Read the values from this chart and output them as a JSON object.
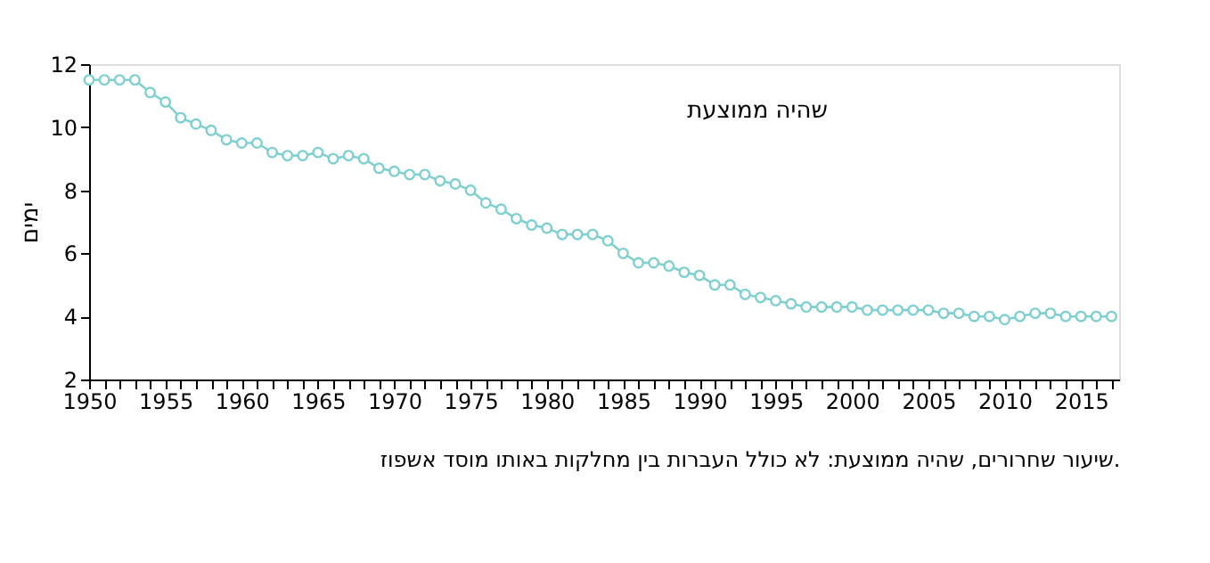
{
  "chart_data": {
    "type": "line",
    "ylabel": "ימים",
    "annotations": [
      "שיעור שחרורים, שהיה ממוצעת: לא כולל העברות בין מחלקות באותו מוסד אשפוז."
    ],
    "x": [
      1950,
      1951,
      1952,
      1953,
      1954,
      1955,
      1956,
      1957,
      1958,
      1959,
      1960,
      1961,
      1962,
      1963,
      1964,
      1965,
      1966,
      1967,
      1968,
      1969,
      1970,
      1971,
      1972,
      1973,
      1974,
      1975,
      1976,
      1977,
      1978,
      1979,
      1980,
      1981,
      1982,
      1983,
      1984,
      1985,
      1986,
      1987,
      1988,
      1989,
      1990,
      1991,
      1992,
      1993,
      1994,
      1995,
      1996,
      1997,
      1998,
      1999,
      2000,
      2001,
      2002,
      2003,
      2004,
      2005,
      2006,
      2007,
      2008,
      2009,
      2010,
      2011,
      2012,
      2013,
      2014,
      2015,
      2016,
      2017
    ],
    "series": [
      {
        "name": "שהיה ממוצעת",
        "color": "#7fd0cf",
        "values": [
          11.5,
          11.5,
          11.5,
          11.5,
          11.1,
          10.8,
          10.3,
          10.1,
          9.9,
          9.6,
          9.5,
          9.5,
          9.2,
          9.1,
          9.1,
          9.2,
          9.0,
          9.1,
          9.0,
          8.7,
          8.6,
          8.5,
          8.5,
          8.3,
          8.2,
          8.0,
          7.6,
          7.4,
          7.1,
          6.9,
          6.8,
          6.6,
          6.6,
          6.6,
          6.4,
          6.0,
          5.7,
          5.7,
          5.6,
          5.4,
          5.3,
          5.0,
          5.0,
          4.7,
          4.6,
          4.5,
          4.4,
          4.3,
          4.3,
          4.3,
          4.3,
          4.2,
          4.2,
          4.2,
          4.2,
          4.2,
          4.1,
          4.1,
          4.0,
          4.0,
          3.9,
          4.0,
          4.1,
          4.1,
          4.0,
          4.0,
          4.0,
          4.0
        ]
      }
    ],
    "xlim": [
      1950,
      2017.5
    ],
    "xticks": [
      1950,
      {
        "value": 1951,
        "label": null
      },
      {
        "value": 1952,
        "label": null
      },
      {
        "value": 1953,
        "label": null
      },
      {
        "value": 1954,
        "label": null
      },
      1955,
      {
        "value": 1956,
        "label": null
      },
      {
        "value": 1957,
        "label": null
      },
      {
        "value": 1958,
        "label": null
      },
      {
        "value": 1959,
        "label": null
      },
      1960,
      {
        "value": 1961,
        "label": null
      },
      {
        "value": 1962,
        "label": null
      },
      {
        "value": 1963,
        "label": null
      },
      {
        "value": 1964,
        "label": null
      },
      1965,
      {
        "value": 1966,
        "label": null
      },
      {
        "value": 1967,
        "label": null
      },
      {
        "value": 1968,
        "label": null
      },
      {
        "value": 1969,
        "label": null
      },
      1970,
      {
        "value": 1971,
        "label": null
      },
      {
        "value": 1972,
        "label": null
      },
      {
        "value": 1973,
        "label": null
      },
      {
        "value": 1974,
        "label": null
      },
      1975,
      {
        "value": 1976,
        "label": null
      },
      {
        "value": 1977,
        "label": null
      },
      {
        "value": 1978,
        "label": null
      },
      {
        "value": 1979,
        "label": null
      },
      1980,
      {
        "value": 1981,
        "label": null
      },
      {
        "value": 1982,
        "label": null
      },
      {
        "value": 1983,
        "label": null
      },
      {
        "value": 1984,
        "label": null
      },
      1985,
      {
        "value": 1986,
        "label": null
      },
      {
        "value": 1987,
        "label": null
      },
      {
        "value": 1988,
        "label": null
      },
      {
        "value": 1989,
        "label": null
      },
      1990,
      {
        "value": 1991,
        "label": null
      },
      {
        "value": 1992,
        "label": null
      },
      {
        "value": 1993,
        "label": null
      },
      {
        "value": 1994,
        "label": null
      },
      1995,
      {
        "value": 1996,
        "label": null
      },
      {
        "value": 1997,
        "label": null
      },
      {
        "value": 1998,
        "label": null
      },
      {
        "value": 1999,
        "label": null
      },
      2000,
      {
        "value": 2001,
        "label": null
      },
      {
        "value": 2002,
        "label": null
      },
      {
        "value": 2003,
        "label": null
      },
      {
        "value": 2004,
        "label": null
      },
      2005,
      {
        "value": 2006,
        "label": null
      },
      {
        "value": 2007,
        "label": null
      },
      {
        "value": 2008,
        "label": null
      },
      {
        "value": 2009,
        "label": null
      },
      2010,
      {
        "value": 2011,
        "label": null
      },
      {
        "value": 2012,
        "label": null
      },
      {
        "value": 2013,
        "label": null
      },
      {
        "value": 2014,
        "label": null
      },
      2015,
      {
        "value": 2016,
        "label": null
      },
      {
        "value": 2017,
        "label": null
      }
    ],
    "ylim": [
      2,
      12
    ],
    "yticks": [
      2,
      4,
      6,
      8,
      10,
      12
    ],
    "grid": false,
    "legend": false,
    "marker": "circle",
    "line_style": "solid"
  }
}
